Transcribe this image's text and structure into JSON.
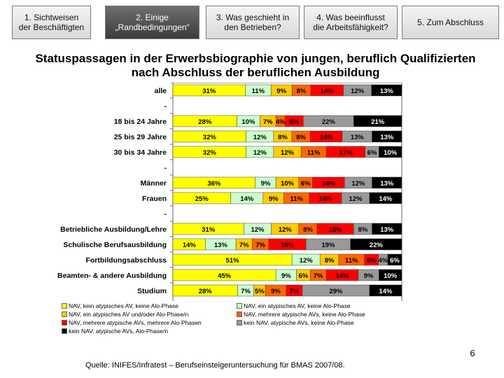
{
  "nav_tabs": [
    {
      "label": "1. Sichtweisen\nder Beschäftigten",
      "active": false
    },
    {
      "label": "2. Einige\n„Randbedingungen“",
      "active": true
    },
    {
      "label": "3. Was geschieht in\nden Betrieben?",
      "active": false
    },
    {
      "label": "4. Was beeinflusst\ndie Arbeitsfähigkeit?",
      "active": false
    },
    {
      "label": "5. Zum Abschluss",
      "active": false
    }
  ],
  "slide": {
    "title": "Statuspassagen in der Erwerbsbiographie von jungen, beruflich Qualifizierten\nnach Abschluss der beruflichen Ausbildung",
    "page_number": "6",
    "source": "Quelle: INIFES/Infratest – Berufseinsteigeruntersuchung für BMAS 2007/08."
  },
  "chart_data": {
    "type": "bar",
    "orientation": "horizontal",
    "stacked": true,
    "categories": [
      "alle",
      "-",
      "18 bis 24 Jahre",
      "25 bis 29 Jahre",
      "30 bis 34 Jahre",
      "-",
      "Männer",
      "Frauen",
      "-",
      "Betriebliche Ausbildung/Lehre",
      "Schulische Berufsausbildung",
      "Fortbildungsabschluss",
      "Beamten- & andere Ausbildung",
      "Studium"
    ],
    "series": [
      {
        "name": "NAV, kein atypisches AV, keine Alo-Phase",
        "color": "#ffff00",
        "values": [
          31,
          null,
          28,
          32,
          32,
          null,
          36,
          25,
          null,
          31,
          14,
          51,
          45,
          28
        ]
      },
      {
        "name": "NAV, ein atypisches AV, keine Alo-Phase",
        "color": "#ccffcc",
        "values": [
          11,
          null,
          10,
          12,
          12,
          null,
          9,
          14,
          null,
          12,
          13,
          12,
          9,
          7
        ]
      },
      {
        "name": "NAV, ein atypisches AV und/oder Alo-Phase/n",
        "color": "#ffcc00",
        "values": [
          9,
          null,
          7,
          8,
          12,
          null,
          10,
          9,
          null,
          12,
          7,
          8,
          6,
          5
        ]
      },
      {
        "name": "NAV, mehrere atypische AVs, keine Alo-Phase",
        "color": "#ff6600",
        "values": [
          8,
          null,
          4,
          8,
          11,
          null,
          6,
          11,
          null,
          8,
          7,
          11,
          7,
          9
        ]
      },
      {
        "name": "NAV, mehrere atypische AVs, mehrere Alo-Phasen",
        "color": "#ff0000",
        "values": [
          14,
          null,
          8,
          14,
          17,
          null,
          14,
          14,
          null,
          16,
          16,
          6,
          14,
          7
        ]
      },
      {
        "name": "kein NAV, atypische AVs, keine Alo-Phase",
        "color": "#999999",
        "values": [
          12,
          null,
          22,
          13,
          6,
          null,
          12,
          12,
          null,
          8,
          19,
          4,
          9,
          29
        ]
      },
      {
        "name": "kein NAV, atypische AVs, Alo-Phase/n",
        "color": "#000000",
        "values": [
          13,
          null,
          21,
          13,
          10,
          null,
          13,
          14,
          null,
          13,
          22,
          6,
          10,
          14
        ]
      }
    ],
    "legend_position": "bottom"
  }
}
